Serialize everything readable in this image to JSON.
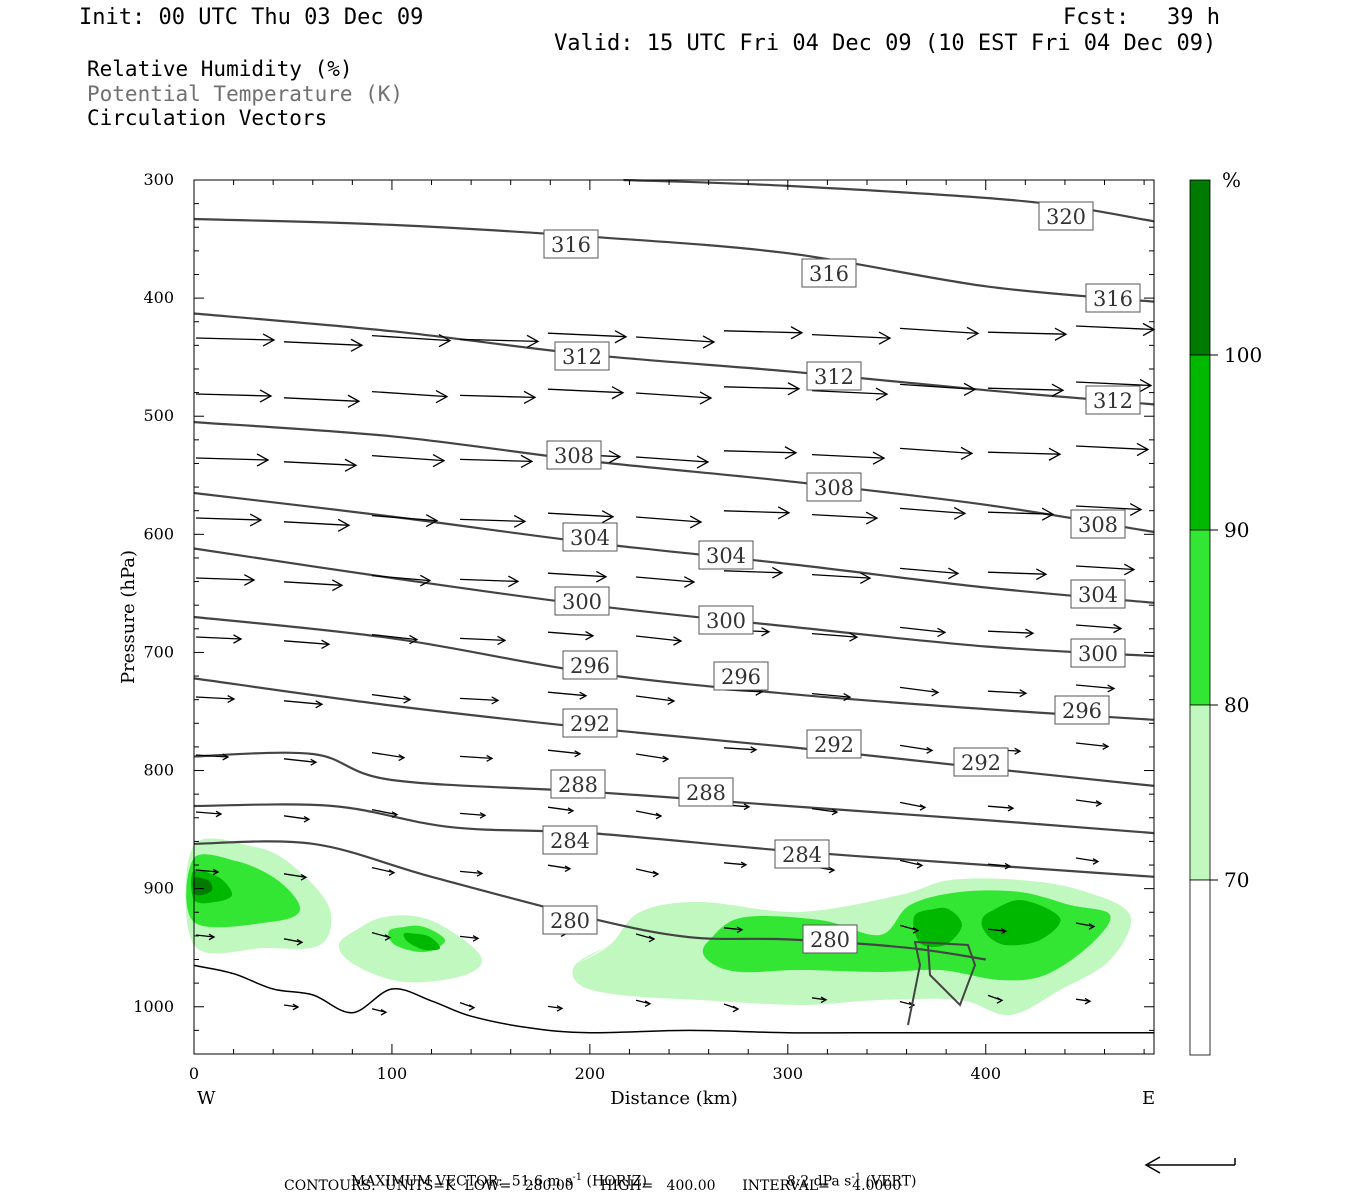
{
  "header": {
    "init": "Init: 00 UTC Thu 03 Dec 09",
    "fcst_label": "Fcst:",
    "fcst_value": "39 h",
    "valid": "Valid: 15 UTC Fri 04 Dec 09 (10 EST Fri 04 Dec 09)"
  },
  "legend": {
    "line1": "Relative Humidity (%)",
    "line2": "Potential Temperature (K)",
    "line3": "Circulation Vectors"
  },
  "footer": {
    "max_vector_label": "MAXIMUM VECTOR:",
    "max_horiz": "51.6 m s",
    "horiz_exp": "-1",
    "horiz_unit": "(HORIZ)",
    "max_vert": "8.2 dPa s",
    "vert_exp": "-1",
    "vert_unit": "(VERT)",
    "contours": "CONTOURS:  UNITS=K  LOW=   280.00      HIGH=   400.00      INTERVAL=     4.0000"
  },
  "colorbar": {
    "unit": "%",
    "labels": [
      "70",
      "80",
      "90",
      "100"
    ],
    "colors": [
      "#ffffff",
      "#c0f8c0",
      "#33e633",
      "#00b800",
      "#007a00"
    ]
  },
  "chart_data": {
    "type": "contour",
    "xlabel": "Distance (km)",
    "ylabel": "Pressure (hPa)",
    "x_ticks": [
      "0",
      "100",
      "200",
      "300",
      "400"
    ],
    "y_ticks": [
      "300",
      "400",
      "500",
      "600",
      "700",
      "800",
      "900",
      "1000"
    ],
    "xlim": [
      0,
      485
    ],
    "ylim": [
      1040,
      300
    ],
    "west_label": "W",
    "east_label": "E",
    "theta_contours": [
      {
        "label": "320",
        "points": [
          [
            217,
            300
          ],
          [
            300,
            305
          ],
          [
            420,
            318
          ],
          [
            485,
            335
          ]
        ]
      },
      {
        "label": "316",
        "points": [
          [
            0,
            333
          ],
          [
            100,
            338
          ],
          [
            200,
            348
          ],
          [
            300,
            362
          ],
          [
            400,
            390
          ],
          [
            485,
            403
          ]
        ]
      },
      {
        "label": "312",
        "points": [
          [
            0,
            413
          ],
          [
            100,
            428
          ],
          [
            200,
            448
          ],
          [
            300,
            462
          ],
          [
            400,
            478
          ],
          [
            485,
            490
          ]
        ]
      },
      {
        "label": "308",
        "points": [
          [
            0,
            505
          ],
          [
            100,
            517
          ],
          [
            200,
            538
          ],
          [
            300,
            555
          ],
          [
            400,
            575
          ],
          [
            485,
            598
          ]
        ]
      },
      {
        "label": "304",
        "points": [
          [
            0,
            565
          ],
          [
            100,
            585
          ],
          [
            200,
            607
          ],
          [
            300,
            625
          ],
          [
            400,
            645
          ],
          [
            485,
            658
          ]
        ]
      },
      {
        "label": "300",
        "points": [
          [
            0,
            612
          ],
          [
            100,
            637
          ],
          [
            200,
            660
          ],
          [
            300,
            678
          ],
          [
            400,
            695
          ],
          [
            485,
            703
          ]
        ]
      },
      {
        "label": "296",
        "points": [
          [
            0,
            670
          ],
          [
            100,
            688
          ],
          [
            200,
            717
          ],
          [
            300,
            735
          ],
          [
            400,
            748
          ],
          [
            485,
            757
          ]
        ]
      },
      {
        "label": "292",
        "points": [
          [
            0,
            722
          ],
          [
            100,
            745
          ],
          [
            200,
            764
          ],
          [
            300,
            780
          ],
          [
            400,
            798
          ],
          [
            485,
            813
          ]
        ]
      },
      {
        "label": "288",
        "points": [
          [
            0,
            788
          ],
          [
            60,
            786
          ],
          [
            100,
            808
          ],
          [
            200,
            818
          ],
          [
            300,
            830
          ],
          [
            400,
            842
          ],
          [
            485,
            853
          ]
        ]
      },
      {
        "label": "284",
        "points": [
          [
            0,
            830
          ],
          [
            70,
            830
          ],
          [
            130,
            848
          ],
          [
            200,
            853
          ],
          [
            300,
            868
          ],
          [
            400,
            880
          ],
          [
            485,
            890
          ]
        ]
      },
      {
        "label": "280",
        "points": [
          [
            0,
            862
          ],
          [
            60,
            862
          ],
          [
            120,
            890
          ],
          [
            200,
            925
          ],
          [
            250,
            941
          ],
          [
            300,
            943
          ],
          [
            360,
            950
          ],
          [
            400,
            960
          ]
        ]
      }
    ],
    "rh_levels": [
      70,
      80,
      90,
      100
    ]
  }
}
